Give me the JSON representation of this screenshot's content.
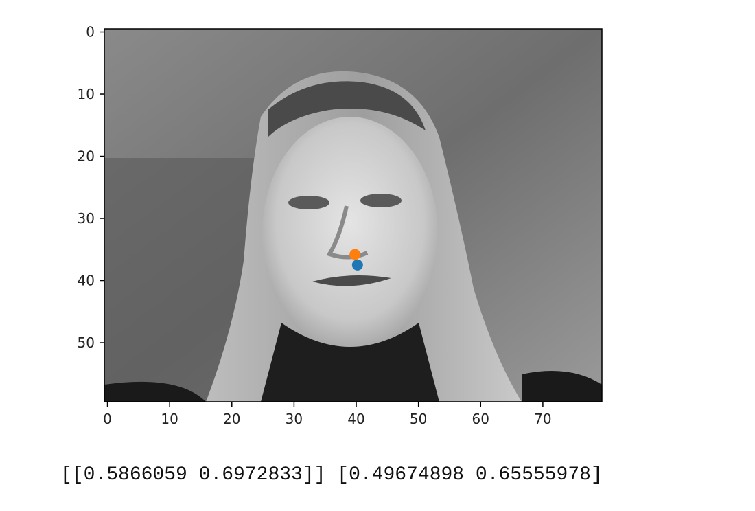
{
  "chart_data": {
    "type": "scatter",
    "background": "grayscale-face-photo",
    "xlim": [
      -0.5,
      79.5
    ],
    "ylim": [
      59.5,
      -0.5
    ],
    "y_inverted": true,
    "x_ticks": [
      0,
      10,
      20,
      30,
      40,
      50,
      60,
      70
    ],
    "y_ticks": [
      0,
      10,
      20,
      30,
      40,
      50
    ],
    "grid": false,
    "series": [
      {
        "color": "#1f77b4",
        "points": [
          {
            "x": 40.2,
            "y": 37.5
          }
        ]
      },
      {
        "color": "#ff7f0e",
        "points": [
          {
            "x": 39.8,
            "y": 35.8
          }
        ]
      }
    ]
  },
  "output_text": "[[0.5866059 0.6972833]] [0.49674898 0.65555978]"
}
